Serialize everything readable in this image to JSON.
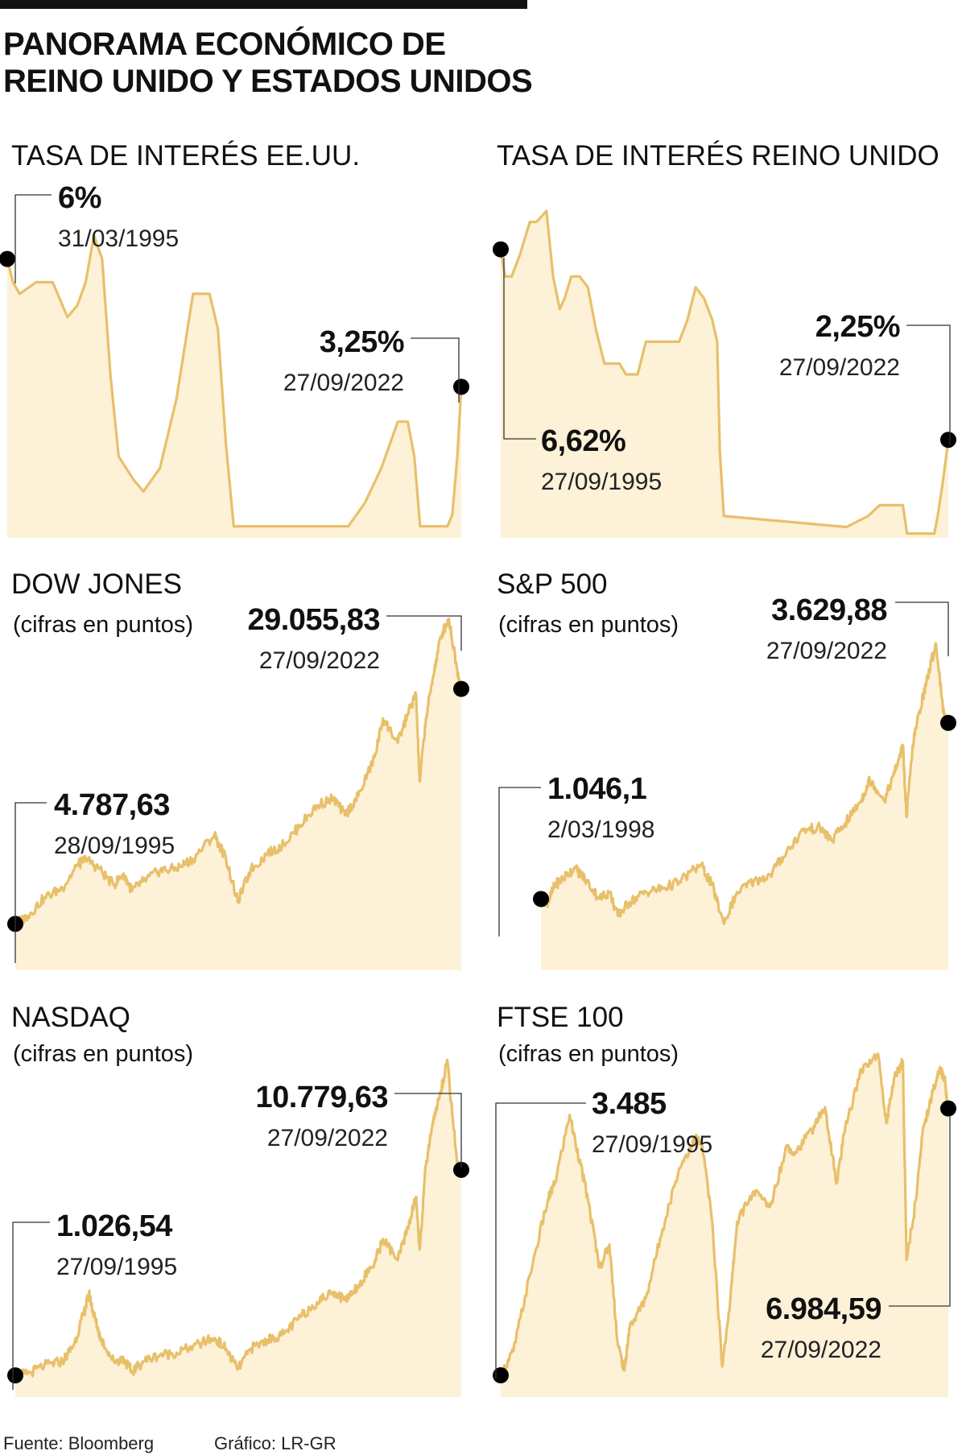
{
  "page": {
    "title_line1": "PANORAMA ECONÓMICO DE",
    "title_line2": "REINO UNIDO Y ESTADOS UNIDOS",
    "source": "Fuente: Bloomberg",
    "credit": "Gráfico: LR-GR"
  },
  "colors": {
    "line": "#e8c06a",
    "fill": "#fdf1d8",
    "marker": "#000000",
    "text": "#111111"
  },
  "chart_data": [
    {
      "id": "us-rate",
      "type": "area",
      "title": "TASA DE INTERÉS EE.UU.",
      "subtitle": "",
      "x": [
        1995.25,
        1995.6,
        1996.0,
        1997.0,
        1997.5,
        1998.0,
        1998.9,
        1999.5,
        2000.0,
        2000.5,
        2001.0,
        2001.5,
        2002.0,
        2002.9,
        2003.5,
        2004.5,
        2005.5,
        2006.5,
        2007.5,
        2008.0,
        2008.5,
        2008.96,
        2015.9,
        2016.9,
        2017.9,
        2018.9,
        2019.5,
        2019.9,
        2020.25,
        2021.9,
        2022.2,
        2022.5,
        2022.74
      ],
      "values": [
        6.0,
        5.5,
        5.25,
        5.5,
        5.5,
        5.5,
        4.75,
        5.0,
        5.5,
        6.5,
        6.0,
        3.5,
        1.75,
        1.25,
        1.0,
        1.5,
        3.0,
        5.25,
        5.25,
        4.5,
        2.0,
        0.25,
        0.25,
        0.75,
        1.5,
        2.5,
        2.5,
        1.75,
        0.25,
        0.25,
        0.5,
        1.75,
        3.25
      ],
      "ylim": [
        0,
        7.5
      ],
      "grid": false,
      "annotations": [
        {
          "value": "6%",
          "date": "31/03/1995"
        },
        {
          "value": "3,25%",
          "date": "27/09/2022"
        }
      ]
    },
    {
      "id": "uk-rate",
      "type": "area",
      "title": "TASA DE INTERÉS REINO UNIDO",
      "subtitle": "",
      "x": [
        1995.74,
        1996.0,
        1996.4,
        1996.9,
        1997.5,
        1997.9,
        1998.5,
        1998.9,
        1999.3,
        1999.6,
        2000.0,
        2000.5,
        2001.0,
        2001.5,
        2002.0,
        2002.9,
        2003.3,
        2004.0,
        2004.5,
        2005.5,
        2006.5,
        2007.0,
        2007.5,
        2008.0,
        2008.5,
        2008.8,
        2008.96,
        2009.2,
        2016.6,
        2017.9,
        2018.6,
        2020.0,
        2020.25,
        2021.9,
        2022.1,
        2022.4,
        2022.74
      ],
      "values": [
        6.62,
        6.0,
        6.0,
        6.5,
        7.25,
        7.25,
        7.5,
        6.0,
        5.25,
        5.5,
        6.0,
        6.0,
        5.75,
        4.75,
        4.0,
        4.0,
        3.75,
        3.75,
        4.5,
        4.5,
        4.5,
        5.0,
        5.75,
        5.5,
        5.0,
        4.5,
        2.0,
        0.5,
        0.25,
        0.5,
        0.75,
        0.75,
        0.1,
        0.1,
        0.5,
        1.25,
        2.25
      ],
      "ylim": [
        0,
        8
      ],
      "grid": false,
      "annotations": [
        {
          "value": "2,25%",
          "date": "27/09/2022"
        },
        {
          "value": "6,62%",
          "date": "27/09/1995"
        }
      ]
    },
    {
      "id": "dow",
      "type": "area",
      "title": "DOW JONES",
      "subtitle": "(cifras en puntos)",
      "x": [
        1995.74,
        1996.5,
        1997.5,
        1998.6,
        1999.5,
        2000.0,
        2000.8,
        2001.7,
        2002.3,
        2002.8,
        2003.5,
        2004.5,
        2005.5,
        2006.5,
        2007.8,
        2008.5,
        2009.2,
        2010.0,
        2011.0,
        2012.0,
        2013.0,
        2014.0,
        2015.0,
        2015.7,
        2016.5,
        2017.5,
        2018.0,
        2018.9,
        2019.5,
        2020.0,
        2020.22,
        2020.6,
        2021.0,
        2021.5,
        2021.99,
        2022.5,
        2022.74
      ],
      "values": [
        4787.63,
        5600,
        7500,
        8500,
        10800,
        11500,
        10500,
        8800,
        10000,
        8200,
        9200,
        10300,
        10500,
        11500,
        14000,
        11500,
        7100,
        10400,
        12000,
        13000,
        15000,
        17000,
        17800,
        16000,
        18000,
        22000,
        26000,
        23500,
        26500,
        28500,
        19500,
        26000,
        30000,
        34500,
        36300,
        31000,
        29055.83
      ],
      "ylim": [
        0,
        38000
      ],
      "grid": false,
      "annotations": [
        {
          "value": "29.055,83",
          "date": "27/09/2022"
        },
        {
          "value": "4.787,63",
          "date": "28/09/1995"
        }
      ]
    },
    {
      "id": "sp500",
      "type": "area",
      "title": "S&P 500",
      "subtitle": "(cifras en puntos)",
      "x": [
        1998.17,
        1998.6,
        1999.0,
        1999.5,
        2000.2,
        2000.8,
        2001.7,
        2002.3,
        2002.8,
        2003.5,
        2004.5,
        2005.5,
        2006.5,
        2007.8,
        2008.5,
        2009.2,
        2010.0,
        2011.0,
        2012.0,
        2013.0,
        2014.0,
        2015.0,
        2015.7,
        2016.5,
        2017.5,
        2018.0,
        2018.9,
        2019.5,
        2020.0,
        2020.22,
        2020.6,
        2021.0,
        2021.5,
        2021.99,
        2022.5,
        2022.74
      ],
      "values": [
        1046.1,
        1000,
        1250,
        1350,
        1500,
        1350,
        1050,
        1150,
        800,
        1000,
        1150,
        1200,
        1300,
        1550,
        1250,
        680,
        1150,
        1300,
        1400,
        1750,
        2050,
        2100,
        1900,
        2150,
        2500,
        2800,
        2500,
        2900,
        3300,
        2250,
        3300,
        3800,
        4300,
        4800,
        3700,
        3629.88
      ],
      "ylim": [
        0,
        5400
      ],
      "grid": false,
      "annotations": [
        {
          "value": "3.629,88",
          "date": "27/09/2022"
        },
        {
          "value": "1.046,1",
          "date": "2/03/1998"
        }
      ]
    },
    {
      "id": "nasdaq",
      "type": "area",
      "title": "NASDAQ",
      "subtitle": "(cifras en puntos)",
      "x": [
        1995.74,
        1996.5,
        1997.5,
        1998.6,
        1999.3,
        1999.9,
        2000.2,
        2000.5,
        2000.9,
        2001.7,
        2002.3,
        2002.8,
        2003.5,
        2004.5,
        2005.5,
        2006.5,
        2007.8,
        2008.5,
        2009.2,
        2010.0,
        2011.0,
        2012.0,
        2013.0,
        2014.0,
        2015.0,
        2015.7,
        2016.5,
        2017.5,
        2018.0,
        2018.9,
        2019.5,
        2020.0,
        2020.22,
        2020.6,
        2021.0,
        2021.5,
        2021.89,
        2022.5,
        2022.74
      ],
      "values": [
        1026.54,
        1100,
        1500,
        1700,
        2500,
        4000,
        4900,
        3900,
        2800,
        1700,
        1800,
        1200,
        1700,
        2000,
        2100,
        2400,
        2800,
        2300,
        1300,
        2300,
        2700,
        3000,
        3800,
        4500,
        5000,
        4600,
        5300,
        6400,
        7500,
        6500,
        8000,
        9500,
        7000,
        11000,
        13000,
        14500,
        16000,
        11000,
        10779.63
      ],
      "ylim": [
        0,
        17000
      ],
      "grid": false,
      "annotations": [
        {
          "value": "10.779,63",
          "date": "27/09/2022"
        },
        {
          "value": "1.026,54",
          "date": "27/09/1995"
        }
      ]
    },
    {
      "id": "ftse",
      "type": "area",
      "title": "FTSE 100",
      "subtitle": "(cifras en puntos)",
      "x": [
        1995.74,
        1996.5,
        1997.5,
        1998.6,
        1999.0,
        1999.9,
        2000.5,
        2001.0,
        2001.7,
        2002.3,
        2002.8,
        2003.2,
        2003.5,
        2004.5,
        2005.5,
        2006.5,
        2007.5,
        2007.9,
        2008.5,
        2009.1,
        2009.6,
        2010.0,
        2011.0,
        2012.0,
        2013.0,
        2013.5,
        2014.5,
        2015.3,
        2016.0,
        2016.5,
        2017.5,
        2018.5,
        2019.0,
        2019.5,
        2020.0,
        2020.22,
        2020.8,
        2021.2,
        2021.8,
        2022.2,
        2022.5,
        2022.74
      ],
      "values": [
        3485,
        3800,
        4800,
        5800,
        6000,
        6900,
        6300,
        5800,
        4900,
        5200,
        3900,
        3550,
        4100,
        4500,
        5400,
        6200,
        6600,
        6500,
        5500,
        3600,
        4500,
        5500,
        5900,
        5700,
        6500,
        6400,
        6700,
        7000,
        6000,
        6700,
        7500,
        7700,
        6800,
        7400,
        7600,
        5000,
        5800,
        6700,
        7200,
        7500,
        7400,
        6984.59
      ],
      "ylim": [
        3200,
        7900
      ],
      "grid": false,
      "annotations": [
        {
          "value": "3.485",
          "date": "27/09/1995"
        },
        {
          "value": "6.984,59",
          "date": "27/09/2022"
        }
      ]
    }
  ]
}
